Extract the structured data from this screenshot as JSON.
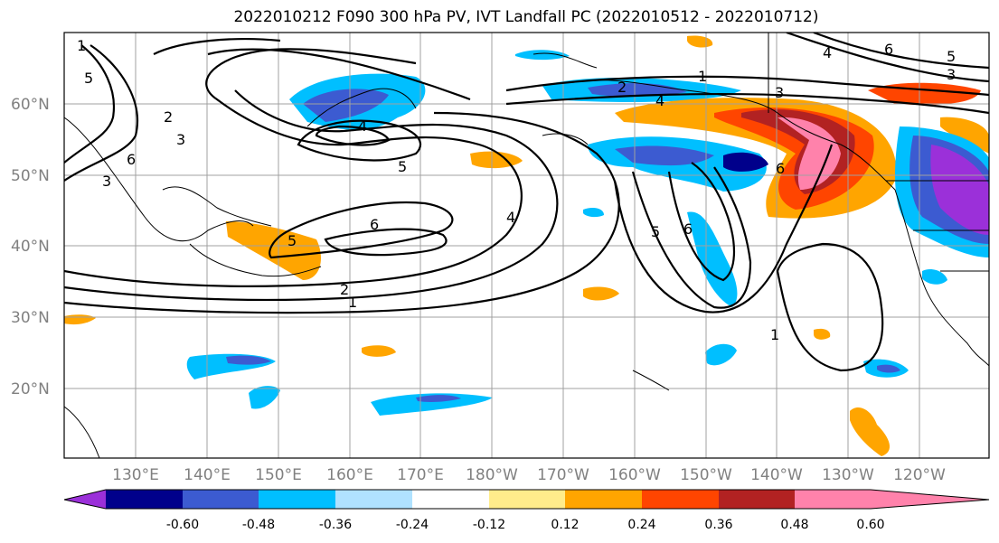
{
  "title": "2022010212 F090 300 hPa PV, IVT Landfall PC (2022010512 - 2022010712)",
  "lat_labels": [
    "60°N",
    "50°N",
    "40°N",
    "30°N",
    "20°N"
  ],
  "lon_labels": [
    "130°E",
    "140°E",
    "150°E",
    "160°E",
    "170°E",
    "180°W",
    "170°W",
    "160°W",
    "150°W",
    "140°W",
    "130°W",
    "120°W"
  ],
  "colorbar": {
    "colors": [
      "#9b30d9",
      "#00008b",
      "#3c5bd1",
      "#00bfff",
      "#b0e2ff",
      "#ffffff",
      "#ffec8b",
      "#ffa500",
      "#ff4500",
      "#b22222",
      "#ff82ab"
    ],
    "ticks": [
      "-0.60",
      "-0.48",
      "-0.36",
      "-0.24",
      "-0.12",
      "0.12",
      "0.24",
      "0.36",
      "0.48",
      "0.60"
    ]
  },
  "contour_labels": [
    "1",
    "2",
    "3",
    "4",
    "5",
    "6",
    "1",
    "2",
    "3",
    "4",
    "5",
    "6",
    "1",
    "2",
    "3",
    "4",
    "5",
    "6",
    "4",
    "5",
    "6",
    "1",
    "3",
    "5",
    "6"
  ]
}
